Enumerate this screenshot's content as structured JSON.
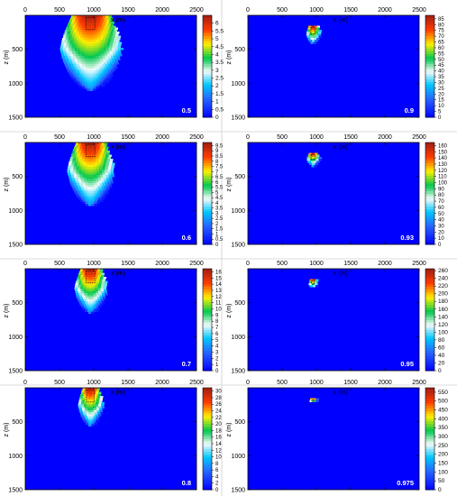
{
  "chart_data": [
    {
      "type": "heatmap",
      "label": "0.5",
      "xlabel": "x (m)",
      "ylabel": "z (m)",
      "xlim": [
        0,
        2500
      ],
      "ylim": [
        0,
        1500
      ],
      "x_ticks": [
        "0",
        "500",
        "1000",
        "1500",
        "2000",
        "2500"
      ],
      "y_ticks": [
        "500",
        "1000",
        "1500"
      ],
      "colorbar_ticks": [
        "0",
        "0.5",
        "1",
        "1.5",
        "2",
        "2.5",
        "3",
        "3.5",
        "4",
        "4.5",
        "5",
        "5.5",
        "6"
      ],
      "colorbar_range": [
        0,
        6.5
      ],
      "plume": {
        "center_x": 950,
        "top_z": 0,
        "max_depth": 1100,
        "max_half_width": 500,
        "peak": 6.5
      }
    },
    {
      "type": "heatmap",
      "label": "0.9",
      "xlabel": "x (m)",
      "ylabel": "z (m)",
      "xlim": [
        0,
        2500
      ],
      "ylim": [
        0,
        1500
      ],
      "x_ticks": [
        "0",
        "500",
        "1000",
        "1500",
        "2000",
        "2500"
      ],
      "y_ticks": [
        "500",
        "1000",
        "1500"
      ],
      "colorbar_ticks": [
        "0",
        "5",
        "10",
        "15",
        "20",
        "25",
        "30",
        "35",
        "40",
        "45",
        "50",
        "55",
        "60",
        "65",
        "70",
        "75",
        "80",
        "85"
      ],
      "colorbar_range": [
        0,
        88
      ],
      "plume": {
        "center_x": 950,
        "top_z": 150,
        "max_depth": 420,
        "max_half_width": 110,
        "peak": 88
      }
    },
    {
      "type": "heatmap",
      "label": "0.6",
      "xlabel": "x (m)",
      "ylabel": "z (m)",
      "xlim": [
        0,
        2500
      ],
      "ylim": [
        0,
        1500
      ],
      "x_ticks": [
        "0",
        "500",
        "1000",
        "1500",
        "2000",
        "2500"
      ],
      "y_ticks": [
        "500",
        "1000",
        "1500"
      ],
      "colorbar_ticks": [
        "0",
        "0.5",
        "1",
        "1.5",
        "2",
        "2.5",
        "3",
        "3.5",
        "4",
        "4.5",
        "5",
        "5.5",
        "6",
        "6.5",
        "7",
        "7.5",
        "8",
        "8.5",
        "9",
        "9.5"
      ],
      "colorbar_range": [
        0,
        9.8
      ],
      "plume": {
        "center_x": 950,
        "top_z": 0,
        "max_depth": 930,
        "max_half_width": 380,
        "peak": 9.8
      }
    },
    {
      "type": "heatmap",
      "label": "0.93",
      "xlabel": "x (m)",
      "ylabel": "z (m)",
      "xlim": [
        0,
        2500
      ],
      "ylim": [
        0,
        1500
      ],
      "x_ticks": [
        "0",
        "500",
        "1000",
        "1500",
        "2000",
        "2500"
      ],
      "y_ticks": [
        "500",
        "1000",
        "1500"
      ],
      "colorbar_ticks": [
        "0",
        "10",
        "20",
        "30",
        "40",
        "50",
        "60",
        "70",
        "80",
        "90",
        "100",
        "110",
        "120",
        "130",
        "140",
        "150",
        "160"
      ],
      "colorbar_range": [
        0,
        165
      ],
      "plume": {
        "center_x": 950,
        "top_z": 150,
        "max_depth": 350,
        "max_half_width": 100,
        "peak": 165
      }
    },
    {
      "type": "heatmap",
      "label": "0.7",
      "xlabel": "x (m)",
      "ylabel": "z (m)",
      "xlim": [
        0,
        2500
      ],
      "ylim": [
        0,
        1500
      ],
      "x_ticks": [
        "0",
        "500",
        "1000",
        "1500",
        "2000",
        "2500"
      ],
      "y_ticks": [
        "500",
        "1000",
        "1500"
      ],
      "colorbar_ticks": [
        "0",
        "1",
        "2",
        "3",
        "4",
        "5",
        "6",
        "7",
        "8",
        "9",
        "10",
        "11",
        "12",
        "13",
        "14",
        "15",
        "16"
      ],
      "colorbar_range": [
        0,
        16.5
      ],
      "plume": {
        "center_x": 950,
        "top_z": 0,
        "max_depth": 650,
        "max_half_width": 260,
        "peak": 16.5
      }
    },
    {
      "type": "heatmap",
      "label": "0.95",
      "xlabel": "x (m)",
      "ylabel": "z (m)",
      "xlim": [
        0,
        2500
      ],
      "ylim": [
        0,
        1500
      ],
      "x_ticks": [
        "0",
        "500",
        "1000",
        "1500",
        "2000",
        "2500"
      ],
      "y_ticks": [
        "500",
        "1000",
        "1500"
      ],
      "colorbar_ticks": [
        "0",
        "20",
        "40",
        "60",
        "80",
        "100",
        "120",
        "140",
        "160",
        "180",
        "200",
        "220",
        "240",
        "260"
      ],
      "colorbar_range": [
        0,
        265
      ],
      "plume": {
        "center_x": 950,
        "top_z": 150,
        "max_depth": 290,
        "max_half_width": 70,
        "peak": 265
      }
    },
    {
      "type": "heatmap",
      "label": "0.8",
      "xlabel": "x (m)",
      "ylabel": "z (m)",
      "xlim": [
        0,
        2500
      ],
      "ylim": [
        0,
        1500
      ],
      "x_ticks": [
        "0",
        "500",
        "1000",
        "1500",
        "2000",
        "2500"
      ],
      "y_ticks": [
        "500",
        "1000",
        "1500"
      ],
      "colorbar_ticks": [
        "0",
        "2",
        "4",
        "6",
        "8",
        "10",
        "12",
        "14",
        "16",
        "18",
        "20",
        "22",
        "24",
        "26",
        "28",
        "30"
      ],
      "colorbar_range": [
        0,
        31
      ],
      "plume": {
        "center_x": 950,
        "top_z": 0,
        "max_depth": 560,
        "max_half_width": 200,
        "peak": 31
      }
    },
    {
      "type": "heatmap",
      "label": "0.975",
      "xlabel": "x (m)",
      "ylabel": "z (m)",
      "xlim": [
        0,
        2500
      ],
      "ylim": [
        0,
        1500
      ],
      "x_ticks": [
        "0",
        "500",
        "1000",
        "1500",
        "2000",
        "2500"
      ],
      "y_ticks": [
        "500",
        "1000",
        "1500"
      ],
      "colorbar_ticks": [
        "0",
        "50",
        "100",
        "150",
        "200",
        "250",
        "300",
        "350",
        "400",
        "450",
        "500",
        "550"
      ],
      "colorbar_range": [
        0,
        575
      ],
      "plume": {
        "center_x": 950,
        "top_z": 150,
        "max_depth": 230,
        "max_half_width": 60,
        "peak": 575
      }
    }
  ]
}
